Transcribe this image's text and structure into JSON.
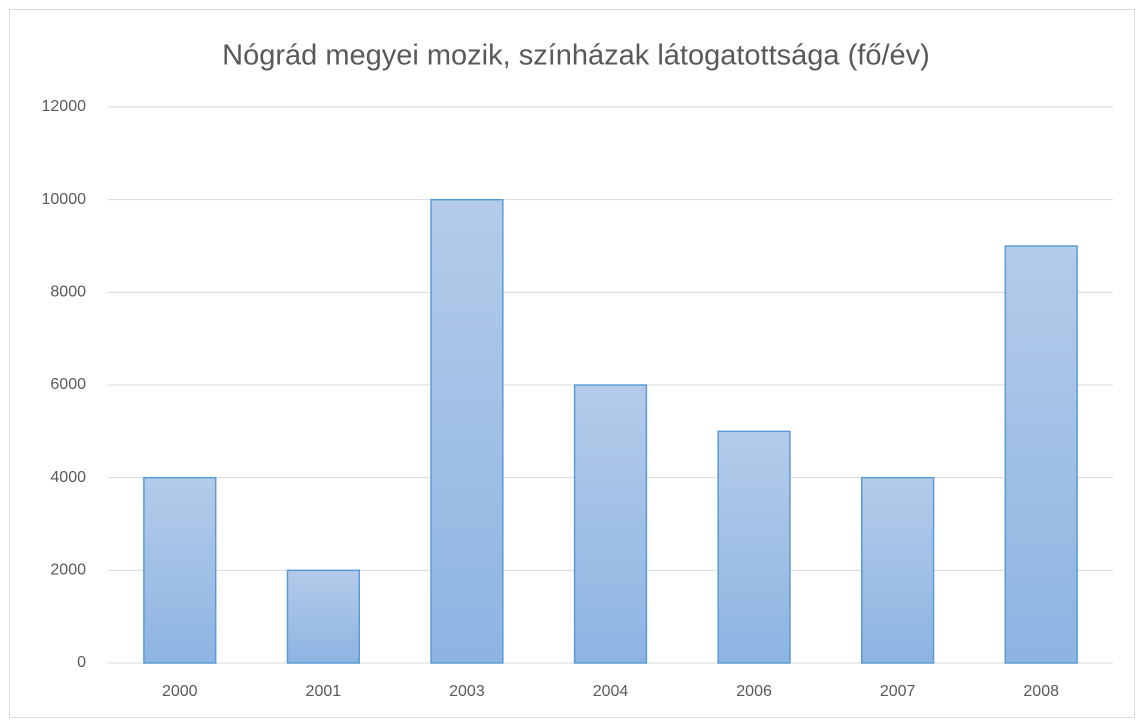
{
  "chart_data": {
    "type": "bar",
    "title": "Nógrád megyei mozik, színházak látogatottsága (fő/év)",
    "categories": [
      "2000",
      "2001",
      "2003",
      "2004",
      "2006",
      "2007",
      "2008"
    ],
    "values": [
      4000,
      2000,
      10000,
      6000,
      5000,
      4000,
      9000
    ],
    "color": "#5b9bd5",
    "ylim": [
      0,
      12000
    ],
    "yticks": [
      0,
      2000,
      4000,
      6000,
      8000,
      10000,
      12000
    ],
    "grid": true
  }
}
